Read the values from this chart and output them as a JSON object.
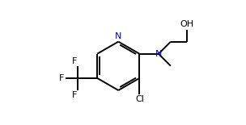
{
  "bg_color": "#ffffff",
  "bond_color": "#000000",
  "N_color": "#0000cd",
  "line_width": 1.4,
  "font_size": 8.0,
  "fig_width": 3.04,
  "fig_height": 1.55,
  "dpi": 100,
  "xlim": [
    0,
    10
  ],
  "ylim": [
    0.5,
    5.8
  ]
}
